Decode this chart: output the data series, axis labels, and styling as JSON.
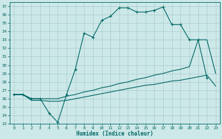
{
  "background_color": "#cde8e8",
  "grid_color": "#aacccc",
  "line_color": "#006666",
  "xlabel": "Humidex (Indice chaleur)",
  "xlim": [
    -0.5,
    23.5
  ],
  "ylim": [
    23,
    37.5
  ],
  "xticks": [
    0,
    1,
    2,
    3,
    4,
    5,
    6,
    7,
    8,
    9,
    10,
    11,
    12,
    13,
    14,
    15,
    16,
    17,
    18,
    19,
    20,
    21,
    22,
    23
  ],
  "yticks": [
    23,
    24,
    25,
    26,
    27,
    28,
    29,
    30,
    31,
    32,
    33,
    34,
    35,
    36,
    37
  ],
  "s1_x": [
    0,
    1,
    2,
    3,
    4,
    5,
    6,
    7,
    8,
    9,
    10,
    11,
    12,
    13,
    14,
    15,
    16,
    17,
    18,
    19,
    20,
    21,
    22
  ],
  "s1_y": [
    26.5,
    26.5,
    26.0,
    26.0,
    24.3,
    23.2,
    26.5,
    29.5,
    33.8,
    33.3,
    35.3,
    35.8,
    36.8,
    36.8,
    36.3,
    36.3,
    36.5,
    36.9,
    34.8,
    34.8,
    33.0,
    33.0,
    28.5
  ],
  "s2_x": [
    0,
    1,
    2,
    3,
    4,
    5,
    6,
    7,
    8,
    9,
    10,
    11,
    12,
    13,
    14,
    15,
    16,
    17,
    18,
    19,
    20,
    21,
    22,
    23
  ],
  "s2_y": [
    26.5,
    26.5,
    26.0,
    26.0,
    26.0,
    26.0,
    26.3,
    26.5,
    26.8,
    27.0,
    27.3,
    27.5,
    27.8,
    28.0,
    28.3,
    28.5,
    28.8,
    29.0,
    29.3,
    29.5,
    29.8,
    33.0,
    33.0,
    29.0
  ],
  "s3_x": [
    0,
    1,
    2,
    3,
    4,
    5,
    6,
    7,
    8,
    9,
    10,
    11,
    12,
    13,
    14,
    15,
    16,
    17,
    18,
    19,
    20,
    21,
    22,
    23
  ],
  "s3_y": [
    26.5,
    26.5,
    25.8,
    25.8,
    25.7,
    25.7,
    25.8,
    26.0,
    26.2,
    26.4,
    26.6,
    26.8,
    27.0,
    27.2,
    27.4,
    27.6,
    27.7,
    27.9,
    28.1,
    28.2,
    28.4,
    28.6,
    28.8,
    27.5
  ]
}
